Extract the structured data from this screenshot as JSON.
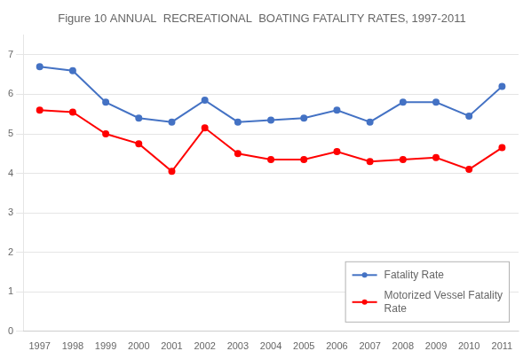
{
  "chart_data": {
    "type": "line",
    "title": "Figure 10 ANNUAL  RECREATIONAL  BOATING FATALITY RATES, 1997-2011",
    "x": [
      1997,
      1998,
      1999,
      2000,
      2001,
      2002,
      2003,
      2004,
      2005,
      2006,
      2007,
      2008,
      2009,
      2010,
      2011
    ],
    "series": [
      {
        "name": "Fatality Rate",
        "color": "#4472C4",
        "values": [
          6.7,
          6.6,
          5.8,
          5.4,
          5.3,
          5.85,
          5.3,
          5.35,
          5.4,
          5.6,
          5.3,
          5.8,
          5.8,
          5.45,
          6.2
        ]
      },
      {
        "name": "Motorized Vessel Fatality\nRate",
        "color": "#FF0000",
        "values": [
          5.6,
          5.55,
          5.0,
          4.75,
          4.05,
          5.15,
          4.5,
          4.35,
          4.35,
          4.55,
          4.3,
          4.35,
          4.4,
          4.1,
          4.65
        ]
      }
    ],
    "xlim": [
      1996.5,
      2011.5
    ],
    "xticks": [
      1997,
      1998,
      1999,
      2000,
      2001,
      2002,
      2003,
      2004,
      2005,
      2006,
      2007,
      2008,
      2009,
      2010,
      2011
    ],
    "ylim": [
      0,
      7.5
    ],
    "yticks": [
      0,
      1,
      2,
      3,
      4,
      5,
      6,
      7
    ],
    "grid": "y",
    "legend": "lower right",
    "marker": "circle"
  }
}
